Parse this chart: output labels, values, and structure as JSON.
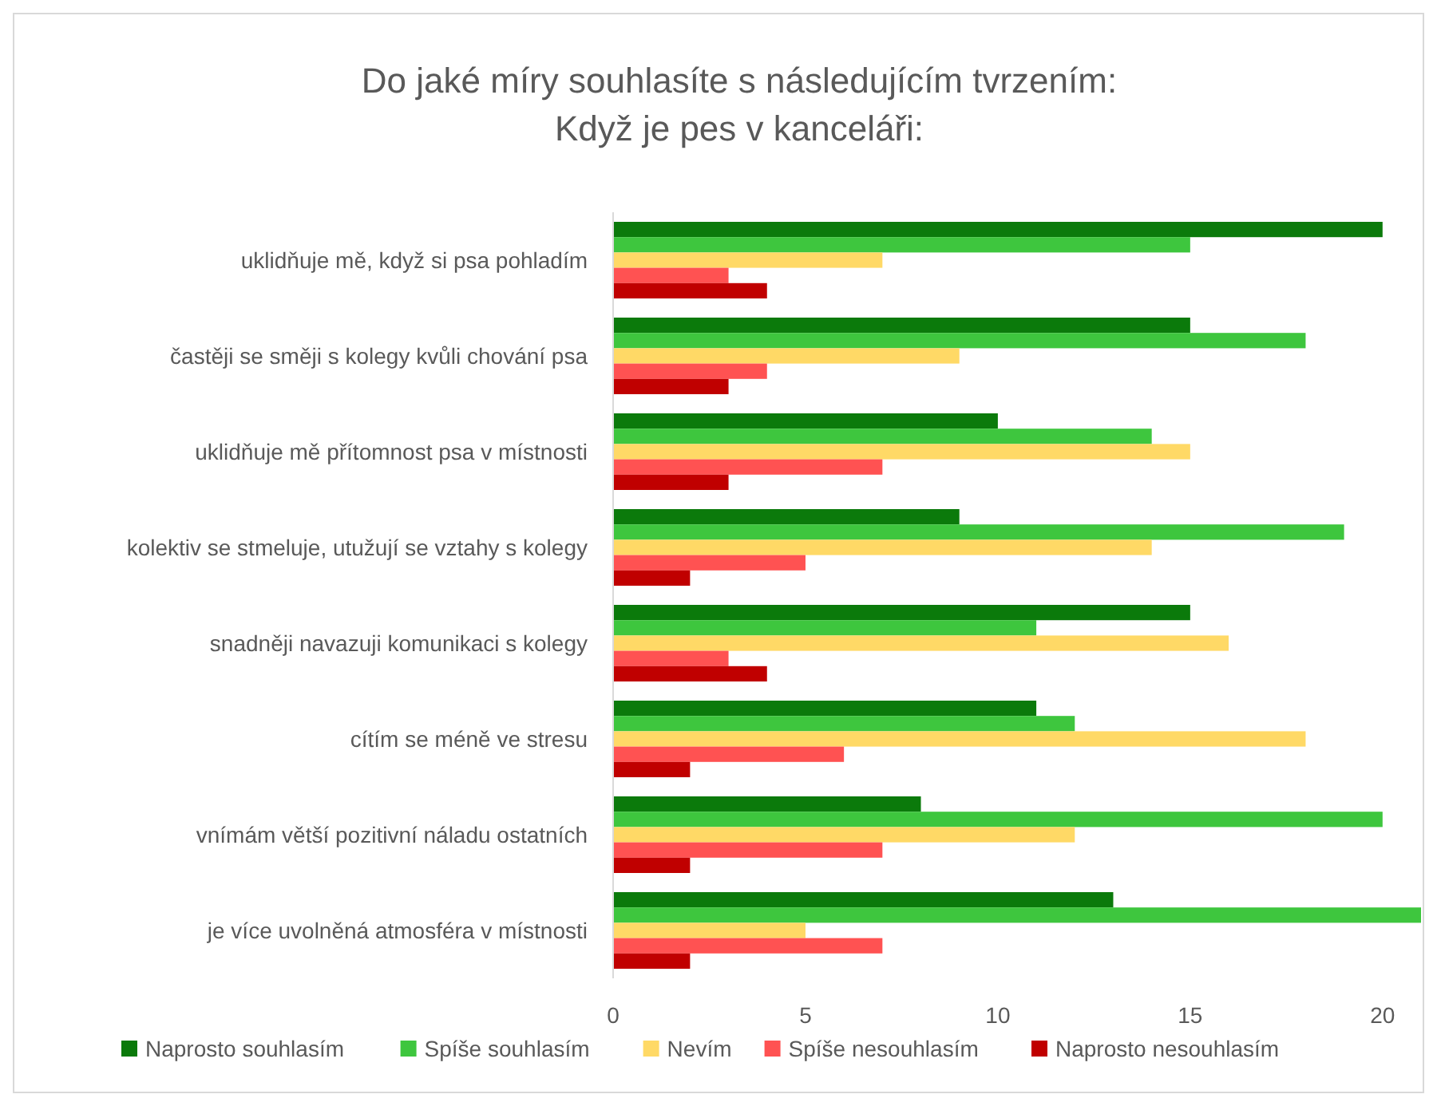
{
  "chart_data": {
    "type": "bar",
    "orientation": "horizontal",
    "title": "Do jaké míry souhlasíte s následujícím tvrzením:\nKdyž je pes v kanceláři:",
    "categories": [
      "uklidňuje mě, když si psa pohladím",
      "častěji se směji s kolegy kvůli chování psa",
      "uklidňuje mě přítomnost psa v místnosti",
      "kolektiv se stmeluje, utužují se vztahy s kolegy",
      "snadněji navazuji komunikaci s kolegy",
      "cítím se méně ve stresu",
      "vnímám větší pozitivní náladu ostatních",
      "je více uvolněná atmosféra v místnosti"
    ],
    "series": [
      {
        "name": "Naprosto souhlasím",
        "color": "#0b7a0b",
        "values": [
          20,
          15,
          10,
          9,
          15,
          11,
          8,
          13
        ]
      },
      {
        "name": "Spíše souhlasím",
        "color": "#3ec63e",
        "values": [
          15,
          18,
          14,
          19,
          11,
          12,
          20,
          21
        ]
      },
      {
        "name": "Nevím",
        "color": "#ffd966",
        "values": [
          7,
          9,
          15,
          14,
          16,
          18,
          12,
          5
        ]
      },
      {
        "name": "Spíše nesouhlasím",
        "color": "#ff5252",
        "values": [
          3,
          4,
          7,
          5,
          3,
          6,
          7,
          7
        ]
      },
      {
        "name": "Naprosto nesouhlasím",
        "color": "#c00000",
        "values": [
          4,
          3,
          3,
          2,
          4,
          2,
          2,
          2
        ]
      }
    ],
    "xlim": [
      0,
      21
    ],
    "xticks": [
      0,
      5,
      10,
      15,
      20
    ],
    "grid": false,
    "legend": "bottom"
  }
}
